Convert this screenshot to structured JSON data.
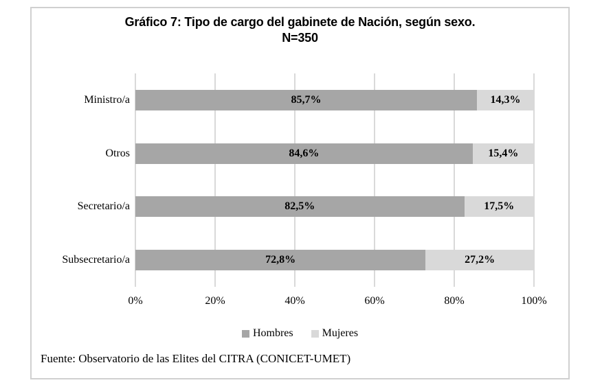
{
  "chart": {
    "title_line1": "Gráfico 7: Tipo de cargo del gabinete de Nación, según sexo.",
    "title_line2": "N=350",
    "source": "Fuente: Observatorio de las Elites del CITRA  (CONICET-UMET)"
  },
  "chart_data": {
    "type": "bar",
    "orientation": "horizontal",
    "stacked": true,
    "title": "Gráfico 7: Tipo de cargo del gabinete de Nación, según sexo. N=350",
    "categories": [
      "Ministro/a",
      "Otros",
      "Secretario/a",
      "Subsecretario/a"
    ],
    "series": [
      {
        "name": "Hombres",
        "color": "#a6a6a6",
        "values": [
          85.7,
          84.6,
          82.5,
          72.8
        ]
      },
      {
        "name": "Mujeres",
        "color": "#d9d9d9",
        "values": [
          14.3,
          15.4,
          17.5,
          27.2
        ]
      }
    ],
    "value_labels": [
      [
        "85,7%",
        "14,3%"
      ],
      [
        "84,6%",
        "15,4%"
      ],
      [
        "82,5%",
        "17,5%"
      ],
      [
        "72,8%",
        "27,2%"
      ]
    ],
    "x_ticks": [
      "0%",
      "20%",
      "40%",
      "60%",
      "80%",
      "100%"
    ],
    "xlim": [
      0,
      100
    ],
    "grid": "vertical",
    "legend_position": "bottom",
    "colors": {
      "hombres": "#a6a6a6",
      "mujeres": "#d9d9d9",
      "gridline": "#d9d9d9",
      "frame_border": "#d0d0d0",
      "text": "#000000"
    }
  }
}
